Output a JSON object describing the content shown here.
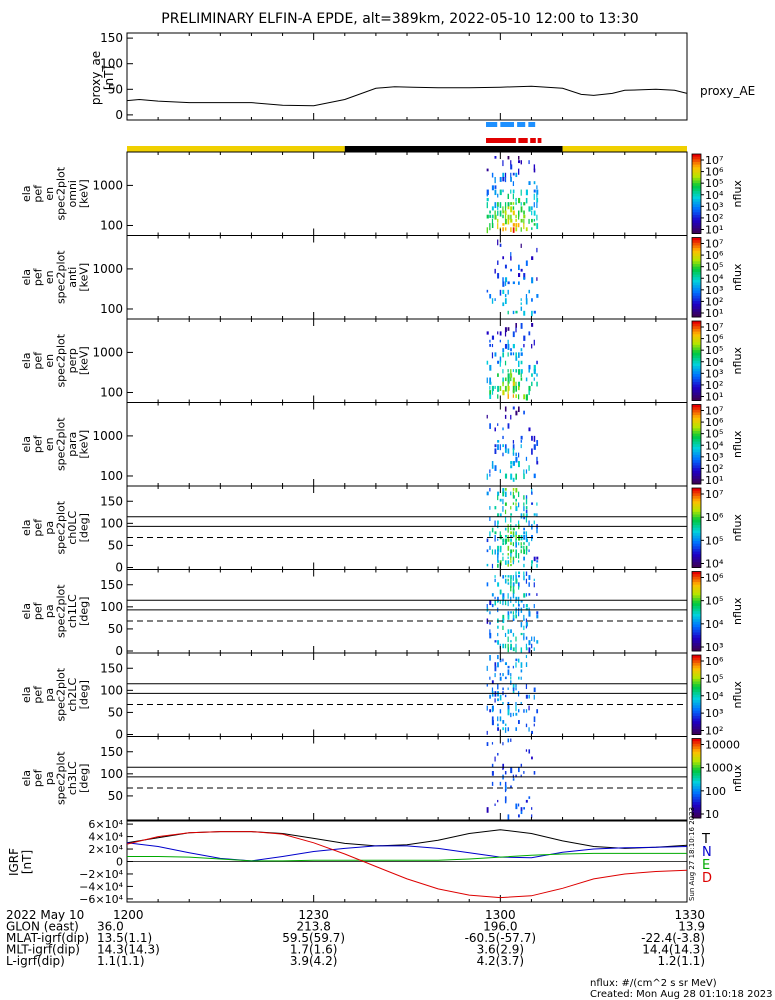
{
  "title": "PRELIMINARY ELFIN-A EPDE, alt=389km, 2022-05-10 12:00 to 13:30",
  "proxy_ae": {
    "ylabel": [
      "proxy_ae",
      "[nT]"
    ],
    "legend": "proxy_AE",
    "ylim": [
      -10,
      160
    ],
    "yticks": [
      "150",
      "100",
      "50",
      "0"
    ],
    "ytick_values": [
      150,
      100,
      50,
      0
    ],
    "t": [
      0,
      2,
      5,
      10,
      15,
      20,
      25,
      30,
      35,
      40,
      43,
      46,
      50,
      55,
      60,
      65,
      70,
      73,
      75,
      78,
      80,
      85,
      88,
      90
    ],
    "v": [
      28,
      30,
      27,
      24,
      24,
      24,
      19,
      18,
      30,
      52,
      55,
      54,
      53,
      53,
      54,
      56,
      52,
      40,
      38,
      42,
      48,
      50,
      48,
      42
    ]
  },
  "colors": {
    "blue_bar": "#1e90ff",
    "red_bar": "#e00000",
    "day": "#f0d000",
    "night": "#000000"
  },
  "sun_bar": [
    {
      "from": 0,
      "to": 35,
      "type": "day"
    },
    {
      "from": 35,
      "to": 70,
      "type": "night"
    },
    {
      "from": 70,
      "to": 90,
      "type": "day"
    }
  ],
  "energy_panels": [
    {
      "labels": [
        "ela",
        "pef",
        "en",
        "spec2plot",
        "omni",
        "[keV]"
      ],
      "cbar_label": "nflux",
      "cbar_ticks": [
        "10⁷",
        "10⁶",
        "10⁵",
        "10⁴",
        "10³",
        "10²",
        "10¹"
      ],
      "yticks": [
        "1000",
        "100"
      ],
      "intensity": 1.0
    },
    {
      "labels": [
        "ela",
        "pef",
        "en",
        "spec2plot",
        "anti",
        "[keV]"
      ],
      "cbar_label": "nflux",
      "cbar_ticks": [
        "10⁷",
        "10⁶",
        "10⁵",
        "10⁴",
        "10³",
        "10²",
        "10¹"
      ],
      "yticks": [
        "1000",
        "100"
      ],
      "intensity": 0.45
    },
    {
      "labels": [
        "ela",
        "pef",
        "en",
        "spec2plot",
        "perp",
        "[keV]"
      ],
      "cbar_label": "nflux",
      "cbar_ticks": [
        "10⁷",
        "10⁶",
        "10⁵",
        "10⁴",
        "10³",
        "10²",
        "10¹"
      ],
      "yticks": [
        "1000",
        "100"
      ],
      "intensity": 0.9
    },
    {
      "labels": [
        "ela",
        "pef",
        "en",
        "spec2plot",
        "para",
        "[keV]"
      ],
      "cbar_label": "nflux",
      "cbar_ticks": [
        "10⁷",
        "10⁶",
        "10⁵",
        "10⁴",
        "10³",
        "10²",
        "10¹"
      ],
      "yticks": [
        "1000",
        "100"
      ],
      "intensity": 0.55
    }
  ],
  "pa_panels": [
    {
      "labels": [
        "ela",
        "pef",
        "pa",
        "spec2plot",
        "ch0LC",
        "[deg]"
      ],
      "cbar_label": "nflux",
      "cbar_ticks": [
        "10⁷",
        "10⁶",
        "10⁵",
        "10⁴"
      ],
      "yticks": [
        "150",
        "100",
        "50",
        "0"
      ],
      "intensity": 0.8
    },
    {
      "labels": [
        "ela",
        "pef",
        "pa",
        "spec2plot",
        "ch1LC",
        "[deg]"
      ],
      "cbar_label": "nflux",
      "cbar_ticks": [
        "10⁶",
        "10⁵",
        "10⁴",
        "10³"
      ],
      "yticks": [
        "150",
        "100",
        "50",
        "0"
      ],
      "intensity": 0.65
    },
    {
      "labels": [
        "ela",
        "pef",
        "pa",
        "spec2plot",
        "ch2LC",
        "[deg]"
      ],
      "cbar_label": "nflux",
      "cbar_ticks": [
        "10⁶",
        "10⁵",
        "10⁴",
        "10³",
        "10²"
      ],
      "yticks": [
        "150",
        "100",
        "50",
        "0"
      ],
      "intensity": 0.5
    },
    {
      "labels": [
        "ela",
        "pef",
        "pa",
        "spec2plot",
        "ch3LC",
        "[deg]"
      ],
      "cbar_label": "nflux",
      "cbar_ticks": [
        "10000",
        "1000",
        "100",
        "10"
      ],
      "yticks": [
        "150",
        "100",
        "50"
      ],
      "intensity": 0.3
    }
  ],
  "pa_lines": [
    115,
    93,
    68
  ],
  "bfield": {
    "ylabel": [
      "IGRF",
      "[nT]"
    ],
    "ylim": [
      -65000,
      65000
    ],
    "yticks": [
      "6×10⁴",
      "4×10⁴",
      "2×10⁴",
      "0",
      "−2×10⁴",
      "−4×10⁴",
      "−6×10⁴"
    ],
    "ytick_values": [
      60000,
      40000,
      20000,
      0,
      -20000,
      -40000,
      -60000
    ],
    "legend": [
      {
        "name": "T",
        "color": "#000000"
      },
      {
        "name": "N",
        "color": "#0000cc"
      },
      {
        "name": "E",
        "color": "#00aa00"
      },
      {
        "name": "D",
        "color": "#dd0000"
      }
    ],
    "t": [
      0,
      5,
      10,
      15,
      20,
      25,
      30,
      35,
      40,
      45,
      50,
      55,
      60,
      65,
      70,
      75,
      80,
      85,
      90
    ],
    "T": [
      30000,
      38000,
      46000,
      48000,
      48000,
      45000,
      37000,
      29000,
      25000,
      27000,
      34000,
      45000,
      51000,
      45000,
      33000,
      24000,
      21000,
      23000,
      26000
    ],
    "N": [
      30000,
      24000,
      14000,
      5000,
      1000,
      8000,
      16000,
      21000,
      25000,
      25000,
      21000,
      14000,
      7000,
      6000,
      15000,
      20000,
      22000,
      23000,
      24000
    ],
    "E": [
      8000,
      8000,
      7000,
      4000,
      1000,
      1000,
      2000,
      2000,
      2000,
      2000,
      2000,
      4000,
      7000,
      10000,
      12000,
      13000,
      13000,
      13000,
      13000
    ],
    "D": [
      28000,
      40000,
      46000,
      48000,
      48000,
      44000,
      30000,
      12000,
      -8000,
      -28000,
      -44000,
      -54000,
      -58000,
      -55000,
      -43000,
      -28000,
      -20000,
      -16000,
      -14000
    ],
    "side_text": "Sun Aug 27 18:10:16 2023"
  },
  "x_axis": {
    "ticks": [
      {
        "t": 0,
        "label": "1200"
      },
      {
        "t": 30,
        "label": "1230"
      },
      {
        "t": 60,
        "label": "1300"
      },
      {
        "t": 90,
        "label": "1330"
      }
    ],
    "rows": [
      {
        "label": "2022 May 10",
        "values": [
          "",
          "",
          "",
          ""
        ]
      },
      {
        "label": "GLON (east)",
        "values": [
          "36.0",
          "213.8",
          "196.0",
          "13.9"
        ]
      },
      {
        "label": "MLAT-igrf(dip)",
        "values": [
          "13.5(1.1)",
          "59.5(59.7)",
          "-60.5(-57.7)",
          "-22.4(-3.8)"
        ]
      },
      {
        "label": "MLT-igrf(dip)",
        "values": [
          "14.3(14.3)",
          "1.7(1.6)",
          "3.6(2.9)",
          "14.4(14.3)"
        ]
      },
      {
        "label": "L-igrf(dip)",
        "values": [
          "1.1(1.1)",
          "3.9(4.2)",
          "4.2(3.7)",
          "1.2(1.1)"
        ]
      }
    ]
  },
  "footer": {
    "units": "nflux: #/(cm^2 s sr MeV)",
    "created": "Created: Mon Aug 28 01:10:18 2023"
  }
}
